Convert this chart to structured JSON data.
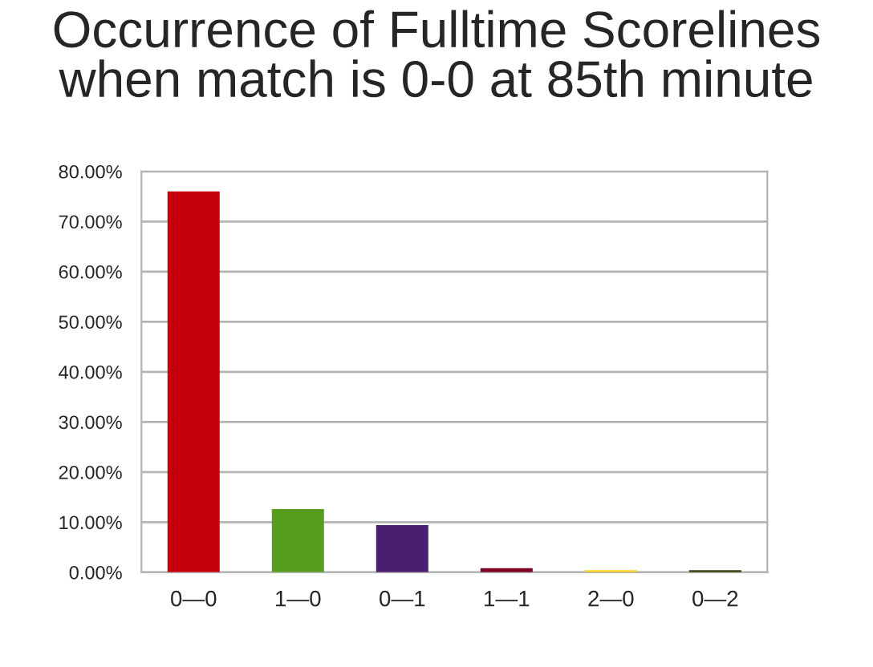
{
  "chart_data": {
    "type": "bar",
    "title": "Occurrence of Fulltime Scorelines\nwhen match is 0-0 at 85th minute",
    "categories": [
      "0—0",
      "1—0",
      "0—1",
      "1—1",
      "2—0",
      "0—2"
    ],
    "values": [
      76,
      12.6,
      9.4,
      0.8,
      0.4,
      0.4
    ],
    "colors": [
      "#c5000b",
      "#579d1c",
      "#4b1f6f",
      "#7e0021",
      "#ffd320",
      "#314004"
    ],
    "ylim": [
      0,
      80
    ],
    "yticks": [
      {
        "value": 0,
        "label": "0.00%"
      },
      {
        "value": 10,
        "label": "10.00%"
      },
      {
        "value": 20,
        "label": "20.00%"
      },
      {
        "value": 30,
        "label": "30.00%"
      },
      {
        "value": 40,
        "label": "40.00%"
      },
      {
        "value": 50,
        "label": "50.00%"
      },
      {
        "value": 60,
        "label": "60.00%"
      },
      {
        "value": 70,
        "label": "70.00%"
      },
      {
        "value": 80,
        "label": "80.00%"
      }
    ],
    "grid": "y",
    "legend": false
  }
}
